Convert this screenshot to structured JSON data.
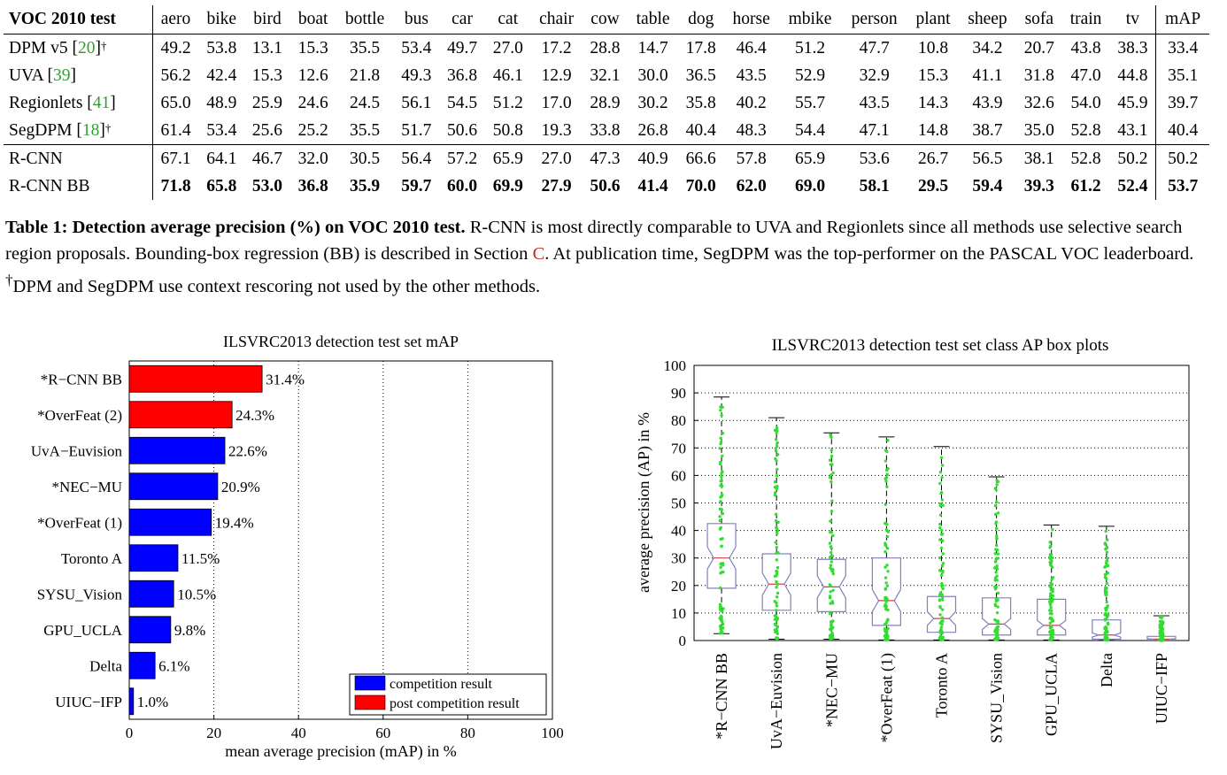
{
  "table": {
    "header": [
      "VOC 2010 test",
      "aero",
      "bike",
      "bird",
      "boat",
      "bottle",
      "bus",
      "car",
      "cat",
      "chair",
      "cow",
      "table",
      "dog",
      "horse",
      "mbike",
      "person",
      "plant",
      "sheep",
      "sofa",
      "train",
      "tv",
      "mAP"
    ],
    "rows": [
      {
        "method": "DPM v5",
        "ref": "20",
        "dagger": "†",
        "values": [
          "49.2",
          "53.8",
          "13.1",
          "15.3",
          "35.5",
          "53.4",
          "49.7",
          "27.0",
          "17.2",
          "28.8",
          "14.7",
          "17.8",
          "46.4",
          "51.2",
          "47.7",
          "10.8",
          "34.2",
          "20.7",
          "43.8",
          "38.3",
          "33.4"
        ]
      },
      {
        "method": "UVA",
        "ref": "39",
        "dagger": "",
        "values": [
          "56.2",
          "42.4",
          "15.3",
          "12.6",
          "21.8",
          "49.3",
          "36.8",
          "46.1",
          "12.9",
          "32.1",
          "30.0",
          "36.5",
          "43.5",
          "52.9",
          "32.9",
          "15.3",
          "41.1",
          "31.8",
          "47.0",
          "44.8",
          "35.1"
        ]
      },
      {
        "method": "Regionlets",
        "ref": "41",
        "dagger": "",
        "values": [
          "65.0",
          "48.9",
          "25.9",
          "24.6",
          "24.5",
          "56.1",
          "54.5",
          "51.2",
          "17.0",
          "28.9",
          "30.2",
          "35.8",
          "40.2",
          "55.7",
          "43.5",
          "14.3",
          "43.9",
          "32.6",
          "54.0",
          "45.9",
          "39.7"
        ]
      },
      {
        "method": "SegDPM",
        "ref": "18",
        "dagger": "†",
        "values": [
          "61.4",
          "53.4",
          "25.6",
          "25.2",
          "35.5",
          "51.7",
          "50.6",
          "50.8",
          "19.3",
          "33.8",
          "26.8",
          "40.4",
          "48.3",
          "54.4",
          "47.1",
          "14.8",
          "38.7",
          "35.0",
          "52.8",
          "43.1",
          "40.4"
        ]
      },
      {
        "method": "R-CNN",
        "ref": "",
        "dagger": "",
        "values": [
          "67.1",
          "64.1",
          "46.7",
          "32.0",
          "30.5",
          "56.4",
          "57.2",
          "65.9",
          "27.0",
          "47.3",
          "40.9",
          "66.6",
          "57.8",
          "65.9",
          "53.6",
          "26.7",
          "56.5",
          "38.1",
          "52.8",
          "50.2",
          "50.2"
        ]
      },
      {
        "method": "R-CNN BB",
        "ref": "",
        "dagger": "",
        "values": [
          "71.8",
          "65.8",
          "53.0",
          "36.8",
          "35.9",
          "59.7",
          "60.0",
          "69.9",
          "27.9",
          "50.6",
          "41.4",
          "70.0",
          "62.0",
          "69.0",
          "58.1",
          "29.5",
          "59.4",
          "39.3",
          "61.2",
          "52.4",
          "53.7"
        ]
      }
    ]
  },
  "caption": {
    "label": "Table 1: Detection average precision (%) on VOC 2010 test.",
    "text1": " R-CNN is most directly comparable to UVA and Regionlets since all methods use selective search region proposals. Bounding-box regression (BB) is described in Section ",
    "section_ref": "C",
    "text2": ". At publication time, SegDPM was the top-performer on the PASCAL VOC leaderboard. ",
    "dagger": "†",
    "text3": "DPM and SegDPM use context rescoring not used by the other methods."
  },
  "chart_data": [
    {
      "type": "bar",
      "orientation": "horizontal",
      "title": "ILSVRC2013 detection test set mAP",
      "xlabel": "mean average precision (mAP) in %",
      "xlim": [
        0,
        100
      ],
      "xticks": [
        0,
        20,
        40,
        60,
        80,
        100
      ],
      "grid": "vertical dotted",
      "legend_position": "bottom-right",
      "legend": [
        {
          "label": "competition result",
          "color": "#0000ff"
        },
        {
          "label": "post competition result",
          "color": "#ff0000"
        }
      ],
      "categories": [
        "*R−CNN BB",
        "*OverFeat (2)",
        "UvA−Euvision",
        "*NEC−MU",
        "*OverFeat (1)",
        "Toronto A",
        "SYSU_Vision",
        "GPU_UCLA",
        "Delta",
        "UIUC−IFP"
      ],
      "values": [
        31.4,
        24.3,
        22.6,
        20.9,
        19.4,
        11.5,
        10.5,
        9.8,
        6.1,
        1.0
      ],
      "value_labels": [
        "31.4%",
        "24.3%",
        "22.6%",
        "20.9%",
        "19.4%",
        "11.5%",
        "10.5%",
        "9.8%",
        "6.1%",
        "1.0%"
      ],
      "groups": [
        "post",
        "post",
        "comp",
        "comp",
        "comp",
        "comp",
        "comp",
        "comp",
        "comp",
        "comp"
      ]
    },
    {
      "type": "box",
      "title": "ILSVRC2013 detection test set class AP box plots",
      "ylabel": "average precision (AP) in %",
      "ylim": [
        0,
        100
      ],
      "yticks": [
        0,
        10,
        20,
        30,
        40,
        50,
        60,
        70,
        80,
        90,
        100
      ],
      "grid": "horizontal dotted",
      "box_color": "#8080c0",
      "point_color": "#33dd33",
      "categories": [
        "*R−CNN BB",
        "UvA−Euvision",
        "*NEC−MU",
        "*OverFeat (1)",
        "Toronto A",
        "SYSU_Vision",
        "GPU_UCLA",
        "Delta",
        "UIUC−IFP"
      ],
      "boxes": [
        {
          "min": 2.5,
          "q1": 19,
          "median": 30,
          "q3": 42.5,
          "max": 88.5
        },
        {
          "min": 0.5,
          "q1": 11,
          "median": 20.5,
          "q3": 31.5,
          "max": 81
        },
        {
          "min": 0.5,
          "q1": 10.5,
          "median": 19.5,
          "q3": 29.5,
          "max": 75.5
        },
        {
          "min": 0.2,
          "q1": 5.5,
          "median": 14.5,
          "q3": 30,
          "max": 74
        },
        {
          "min": 0.2,
          "q1": 3,
          "median": 8,
          "q3": 16,
          "max": 70.5
        },
        {
          "min": 0.2,
          "q1": 2,
          "median": 6,
          "q3": 15.5,
          "max": 59.5
        },
        {
          "min": 0.2,
          "q1": 2,
          "median": 5.5,
          "q3": 15,
          "max": 42
        },
        {
          "min": 0.1,
          "q1": 0.5,
          "median": 2,
          "q3": 7.5,
          "max": 41.5
        },
        {
          "min": 0.0,
          "q1": 0.2,
          "median": 0.5,
          "q3": 1.5,
          "max": 9
        }
      ]
    }
  ]
}
